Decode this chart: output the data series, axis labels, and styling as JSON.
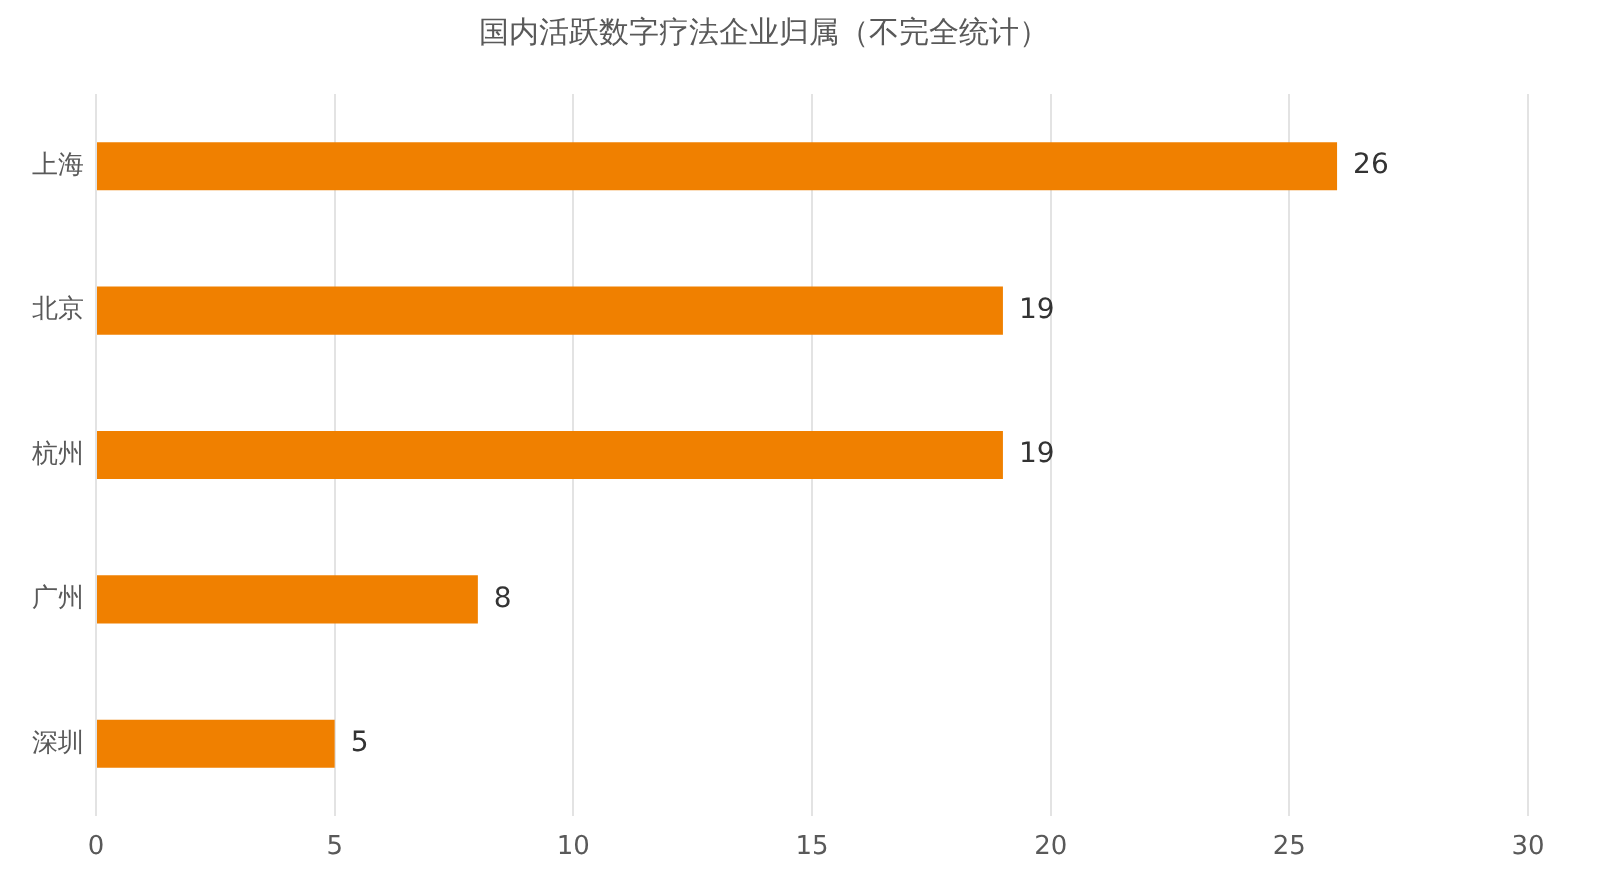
{
  "chart_data": {
    "type": "bar",
    "orientation": "horizontal",
    "title": "国内活跃数字疗法企业归属（不完全统计）",
    "categories": [
      "上海",
      "北京",
      "杭州",
      "广州",
      "深圳"
    ],
    "values": [
      26,
      19,
      19,
      8,
      5
    ],
    "color": "#f08000",
    "xlim": [
      0,
      30
    ],
    "xticks": [
      0,
      5,
      10,
      15,
      20,
      25,
      30
    ],
    "grid": "x",
    "data_labels": true
  }
}
